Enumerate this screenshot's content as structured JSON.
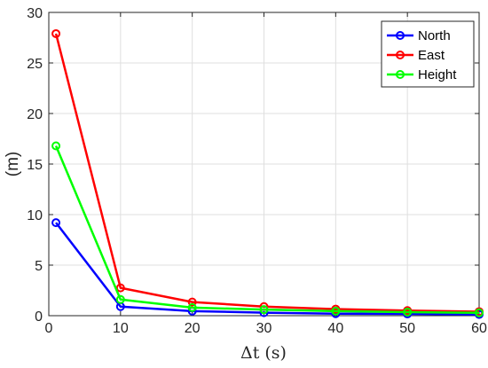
{
  "chart_data": {
    "type": "line",
    "x": [
      1,
      10,
      20,
      30,
      40,
      50,
      60
    ],
    "series": [
      {
        "name": "North",
        "color": "#0000ff",
        "values": [
          9.2,
          0.9,
          0.45,
          0.3,
          0.2,
          0.17,
          0.12
        ]
      },
      {
        "name": "East",
        "color": "#ff0000",
        "values": [
          27.9,
          2.75,
          1.35,
          0.9,
          0.65,
          0.5,
          0.4
        ]
      },
      {
        "name": "Height",
        "color": "#00ff00",
        "values": [
          16.8,
          1.6,
          0.8,
          0.6,
          0.45,
          0.35,
          0.28
        ]
      }
    ],
    "title": "",
    "xlabel": "Δt (s)",
    "ylabel": "(m)",
    "xlim": [
      0,
      60
    ],
    "ylim": [
      0,
      30
    ],
    "xticks": [
      0,
      10,
      20,
      30,
      40,
      50,
      60
    ],
    "yticks": [
      0,
      5,
      10,
      15,
      20,
      25,
      30
    ],
    "grid": true,
    "markers": "hollow-circle",
    "legend_position": "top-right"
  }
}
